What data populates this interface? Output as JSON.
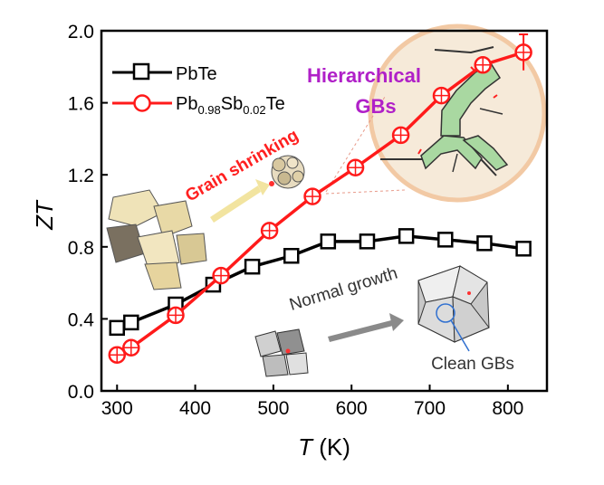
{
  "chart_data": {
    "type": "line",
    "xlabel_italic": "T",
    "xlabel_rest": " (K)",
    "ylabel": "ZT",
    "xlim": [
      280,
      850
    ],
    "ylim": [
      0.0,
      2.0
    ],
    "xticks": [
      300,
      400,
      500,
      600,
      700,
      800
    ],
    "yticks": [
      0.0,
      0.4,
      0.8,
      1.2,
      1.6,
      2.0
    ],
    "ytick_labels": [
      "0.0",
      "0.4",
      "0.8",
      "1.2",
      "1.6",
      "2.0"
    ],
    "grid": false,
    "legend_position": "top-left",
    "series": [
      {
        "name": "PbTe",
        "marker": "square",
        "color": "#000000",
        "x": [
          300,
          318,
          375,
          423,
          473,
          523,
          570,
          620,
          670,
          720,
          770,
          820
        ],
        "y": [
          0.35,
          0.38,
          0.48,
          0.59,
          0.69,
          0.75,
          0.83,
          0.83,
          0.86,
          0.84,
          0.82,
          0.79
        ]
      },
      {
        "name": "Pb0.98Sb0.02Te",
        "marker": "circle-cross",
        "color": "#ff1a1a",
        "x": [
          300,
          318,
          375,
          433,
          495,
          550,
          605,
          663,
          715,
          768,
          820
        ],
        "y": [
          0.2,
          0.24,
          0.42,
          0.64,
          0.89,
          1.08,
          1.24,
          1.42,
          1.64,
          1.81,
          1.88
        ],
        "error_last": 0.1
      }
    ],
    "legend": {
      "pbte": "PbTe",
      "sb_base1": "Pb",
      "sb_sub1": "0.98",
      "sb_base2": "Sb",
      "sb_sub2": "0.02",
      "sb_base3": "Te"
    },
    "annotations": {
      "hier_line1": "Hierarchical",
      "hier_line2": "GBs",
      "grain_shrinking": "Grain shrinking",
      "normal_growth": "Normal growth",
      "clean_gbs": "Clean GBs"
    },
    "colors": {
      "annotation_purple": "#b020c8",
      "annotation_red": "#ff2020",
      "inset_fill": "#f5e8d4",
      "inset_ring": "#f0c8a0",
      "grain_green": "#a8d8a0"
    }
  }
}
